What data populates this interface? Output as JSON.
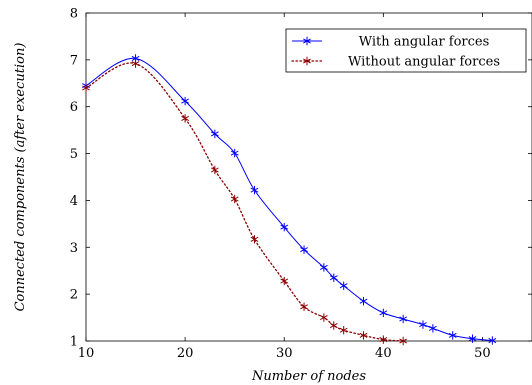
{
  "chart_data": {
    "type": "line",
    "xlabel": "Number of nodes",
    "ylabel": "Connected components (after execution)",
    "xlim": [
      10,
      55
    ],
    "ylim": [
      1,
      8
    ],
    "xticks": [
      10,
      20,
      30,
      40,
      50
    ],
    "yticks": [
      1,
      2,
      3,
      4,
      5,
      6,
      7,
      8
    ],
    "grid": false,
    "legend_position": "top-right",
    "series": [
      {
        "name": "With angular forces",
        "color": "#0000ff",
        "line_style": "solid",
        "marker": "asterisk",
        "x": [
          10,
          15,
          20,
          23,
          25,
          27,
          30,
          32,
          34,
          35,
          36,
          38,
          40,
          42,
          44,
          45,
          47,
          49,
          51
        ],
        "y": [
          6.45,
          7.03,
          6.12,
          5.42,
          5.01,
          4.22,
          3.43,
          2.95,
          2.57,
          2.35,
          2.18,
          1.85,
          1.6,
          1.47,
          1.35,
          1.27,
          1.12,
          1.05,
          1.01
        ]
      },
      {
        "name": "Without angular forces",
        "color": "#8b0000",
        "line_style": "dotted",
        "marker": "asterisk",
        "x": [
          10,
          15,
          20,
          23,
          25,
          27,
          30,
          32,
          34,
          35,
          36,
          38,
          40,
          42
        ],
        "y": [
          6.4,
          6.92,
          5.75,
          4.65,
          4.03,
          3.17,
          2.28,
          1.73,
          1.5,
          1.33,
          1.23,
          1.12,
          1.03,
          1.0
        ]
      }
    ]
  }
}
